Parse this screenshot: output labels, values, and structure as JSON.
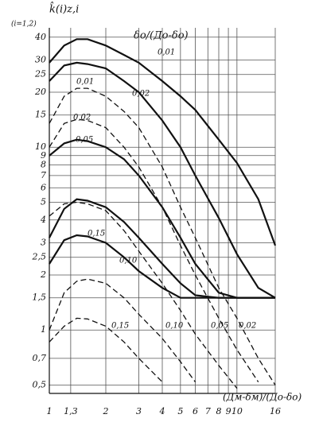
{
  "chart_data": {
    "type": "line",
    "y_label": "k̂(i)z,i",
    "y_sublabel": "(i=1,2)",
    "x_label": "(Дм-δм)/(До-δо)",
    "series_header": "δо/(До-δо)",
    "x": [
      1,
      1.2,
      1.4,
      1.6,
      2,
      2.5,
      3,
      4,
      5,
      6,
      8,
      10,
      13,
      16
    ],
    "xlim": [
      1,
      16
    ],
    "ylim": [
      0.45,
      45
    ],
    "xscale": "log",
    "yscale": "log",
    "grid": true,
    "xticks": [
      1,
      {
        "value": 1.3,
        "label": "1,3"
      },
      2,
      3,
      4,
      5,
      6,
      7,
      8,
      9,
      10,
      16
    ],
    "yticks": [
      {
        "value": 0.5,
        "label": "0,5"
      },
      {
        "value": 0.7,
        "label": "0,7"
      },
      1,
      {
        "value": 1.5,
        "label": "1,5"
      },
      2,
      {
        "value": 2.5,
        "label": "2,5"
      },
      3,
      4,
      5,
      6,
      7,
      8,
      9,
      10,
      15,
      20,
      25,
      30,
      40
    ],
    "series": [
      {
        "name": "0,01",
        "color": "#111111",
        "style": "solid",
        "values": [
          29,
          36,
          39,
          39,
          36,
          32,
          29,
          23,
          19,
          16,
          11,
          8.2,
          5.2,
          2.9
        ]
      },
      {
        "name": "0,02",
        "color": "#111111",
        "style": "solid",
        "values": [
          23,
          28,
          29,
          28.5,
          27,
          23,
          20,
          14,
          10,
          7,
          4.1,
          2.6,
          1.7,
          1.5
        ]
      },
      {
        "name": "0,05",
        "color": "#111111",
        "style": "solid",
        "values": [
          9,
          10.5,
          11,
          10.8,
          10,
          8.6,
          7,
          4.7,
          3.2,
          2.3,
          1.6,
          1.5,
          1.5,
          1.5
        ]
      },
      {
        "name": "0,10",
        "color": "#111111",
        "style": "solid",
        "values": [
          3.2,
          4.6,
          5.2,
          5.1,
          4.7,
          3.9,
          3.2,
          2.3,
          1.8,
          1.55,
          1.5,
          1.5,
          1.5,
          1.5
        ]
      },
      {
        "name": "0,15",
        "color": "#111111",
        "style": "solid",
        "values": [
          2.3,
          3.1,
          3.3,
          3.25,
          3.0,
          2.5,
          2.1,
          1.7,
          1.5,
          1.5,
          1.5,
          1.5,
          1.5,
          1.5
        ]
      },
      {
        "name": "0,01",
        "color": "#111111",
        "style": "dashed",
        "values": [
          13.5,
          19,
          21,
          21,
          19,
          15.7,
          12.8,
          7.8,
          4.7,
          3.2,
          1.7,
          1.16,
          0.7,
          0.5
        ]
      },
      {
        "name": "0,02",
        "color": "#111111",
        "style": "dashed",
        "values": [
          10,
          13.5,
          14.2,
          14,
          12.8,
          10,
          7.8,
          4.7,
          2.9,
          2.0,
          1.16,
          0.78,
          0.52,
          null
        ]
      },
      {
        "name": "0,05",
        "color": "#111111",
        "style": "dashed",
        "values": [
          4.2,
          4.9,
          5.0,
          4.9,
          4.5,
          3.5,
          2.7,
          1.8,
          1.28,
          0.95,
          0.64,
          0.48,
          null,
          null
        ]
      },
      {
        "name": "0,10",
        "color": "#111111",
        "style": "dashed",
        "values": [
          1.0,
          1.6,
          1.85,
          1.9,
          1.8,
          1.5,
          1.22,
          0.9,
          0.67,
          0.52,
          null,
          null,
          null,
          null
        ]
      },
      {
        "name": "0,15",
        "color": "#111111",
        "style": "dashed",
        "values": [
          0.86,
          1.05,
          1.16,
          1.15,
          1.05,
          0.86,
          0.7,
          0.52,
          null,
          null,
          null,
          null,
          null,
          null
        ]
      }
    ],
    "annotations": [
      "0,02"
    ]
  }
}
